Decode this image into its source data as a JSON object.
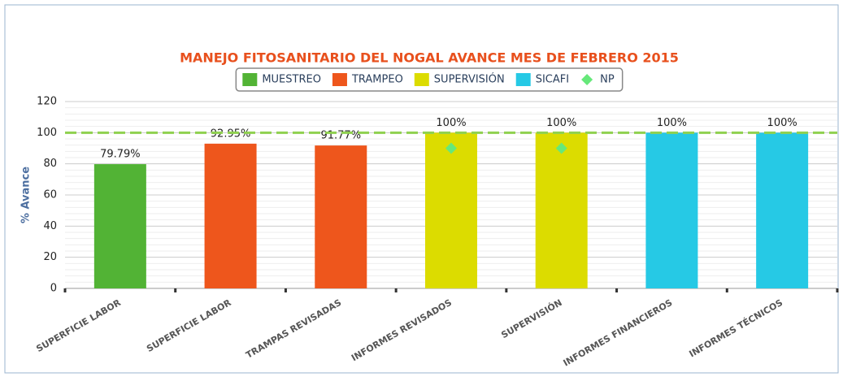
{
  "chart_data": {
    "type": "bar",
    "title": "MANEJO FITOSANITARIO DEL NOGAL AVANCE MES DE FEBRERO 2015",
    "y_label": "% Avance",
    "categories": [
      "SUPERFICIE LABOR",
      "SUPERFICIE LABOR",
      "TRAMPAS REVISADAS",
      "INFORMES REVISADOS",
      "SUPERVISIÓN",
      "INFORMES FINANCIEROS",
      "INFORMES TÉCNICOS"
    ],
    "series": [
      {
        "name": "MUESTREO",
        "type": "bar",
        "color": "#52b335",
        "values": [
          79.79,
          null,
          null,
          null,
          null,
          null,
          null
        ],
        "value_labels": [
          "79.79%",
          null,
          null,
          null,
          null,
          null,
          null
        ]
      },
      {
        "name": "TRAMPEO",
        "type": "bar",
        "color": "#ee561c",
        "values": [
          null,
          92.95,
          91.77,
          null,
          null,
          null,
          null
        ],
        "value_labels": [
          null,
          "92.95%",
          "91.77%",
          null,
          null,
          null,
          null
        ]
      },
      {
        "name": "SUPERVISIÓN",
        "type": "bar",
        "color": "#dcdc00",
        "values": [
          null,
          null,
          null,
          100,
          100,
          null,
          null
        ],
        "value_labels": [
          null,
          null,
          null,
          "100%",
          "100%",
          null,
          null
        ]
      },
      {
        "name": "SICAFI",
        "type": "bar",
        "color": "#26c9e5",
        "values": [
          null,
          null,
          null,
          null,
          null,
          100,
          100
        ],
        "value_labels": [
          null,
          null,
          null,
          null,
          null,
          "100%",
          "100%"
        ]
      },
      {
        "name": "NP",
        "type": "scatter",
        "color": "#66e87a",
        "values": [
          null,
          null,
          null,
          90,
          90,
          null,
          null
        ]
      }
    ],
    "ylim": [
      0,
      120
    ],
    "yticks": [
      0,
      20,
      40,
      60,
      80,
      100,
      120
    ],
    "grid": true,
    "reference_line": 100,
    "reference_color": "#8fd14f",
    "legend": "top"
  }
}
